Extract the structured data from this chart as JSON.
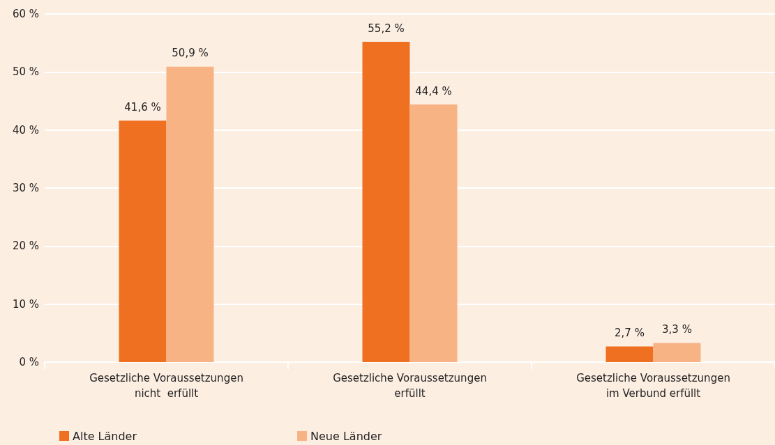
{
  "chart_data": {
    "type": "bar",
    "categories": [
      "Gesetzliche Voraussetzungen\nnicht  erfüllt",
      "Gesetzliche Voraussetzungen\nerfüllt",
      "Gesetzliche Voraussetzungen\nim Verbund erfüllt"
    ],
    "series": [
      {
        "name": "Alte Länder",
        "color": "#f07022",
        "values": [
          41.6,
          55.2,
          2.7
        ],
        "value_labels": [
          "41,6 %",
          "55,2 %",
          "2,7 %"
        ]
      },
      {
        "name": "Neue Länder",
        "color": "#f8b384",
        "values": [
          50.9,
          44.4,
          3.3
        ],
        "value_labels": [
          "50,9 %",
          "44,4 %",
          "3,3 %"
        ]
      }
    ],
    "ylim": [
      0,
      60
    ],
    "yticks": [
      {
        "value": 0,
        "label": "0 %"
      },
      {
        "value": 10,
        "label": "10 %"
      },
      {
        "value": 20,
        "label": "20 %"
      },
      {
        "value": 30,
        "label": "30 %"
      },
      {
        "value": 40,
        "label": "40 %"
      },
      {
        "value": 50,
        "label": "50 %"
      },
      {
        "value": 60,
        "label": "60 %"
      }
    ],
    "grid": "y",
    "legend": "bottom left"
  }
}
